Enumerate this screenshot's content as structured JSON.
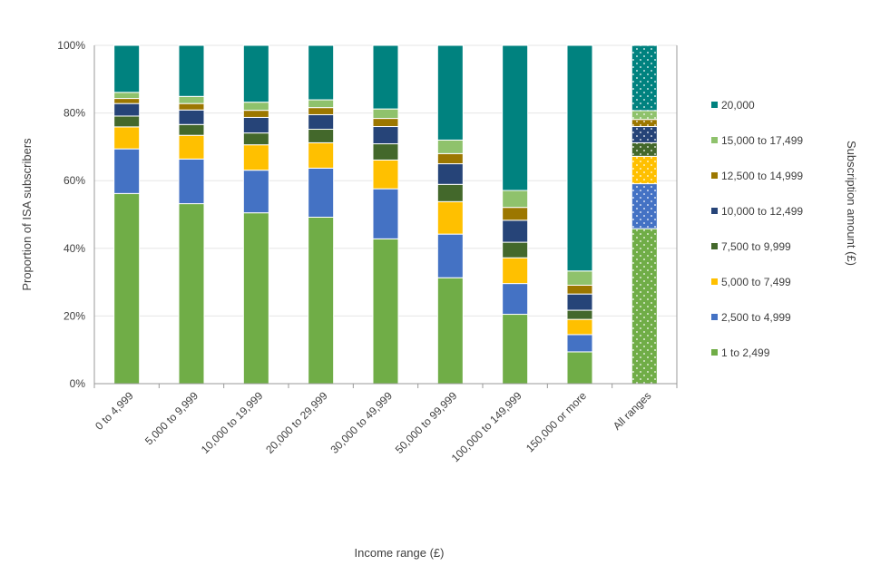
{
  "chart_data": {
    "type": "bar",
    "stacked": true,
    "xlabel": "Income range (£)",
    "ylabel": "Proportion of ISA subscribers",
    "legend_title": "Subscription amount (£)",
    "legend_position": "right",
    "ylim": [
      0,
      100
    ],
    "yticks": [
      0,
      20,
      40,
      60,
      80,
      100
    ],
    "ytick_labels": [
      "0%",
      "20%",
      "40%",
      "60%",
      "80%",
      "100%"
    ],
    "categories": [
      "0 to 4,999",
      "5,000 to 9,999",
      "10,000 to 19,999",
      "20,000 to 29,999",
      "30,000 to 49,999",
      "50,000 to 99,999",
      "100,000 to 149,999",
      "150,000 or more",
      "All ranges"
    ],
    "series": [
      {
        "name": "1 to 2,499",
        "color": "#70AD47",
        "values": [
          56.2,
          53.2,
          50.5,
          49.2,
          42.8,
          31.3,
          20.5,
          9.4,
          45.8
        ]
      },
      {
        "name": "2,500 to 4,999",
        "color": "#4472C4",
        "values": [
          13.2,
          13.2,
          12.6,
          14.5,
          14.8,
          12.9,
          9.1,
          5.1,
          13.3
        ]
      },
      {
        "name": "5,000 to 7,499",
        "color": "#FFC000",
        "values": [
          6.5,
          7.0,
          7.5,
          7.5,
          8.5,
          9.6,
          7.6,
          4.5,
          8.1
        ]
      },
      {
        "name": "7,500 to 9,999",
        "color": "#43682B",
        "values": [
          3.2,
          3.2,
          3.5,
          4.0,
          4.8,
          5.1,
          4.6,
          2.7,
          4.0
        ]
      },
      {
        "name": "10,000 to 12,499",
        "color": "#264478",
        "values": [
          3.7,
          4.3,
          4.6,
          4.3,
          5.1,
          6.1,
          6.5,
          4.8,
          4.8
        ]
      },
      {
        "name": "12,500 to 14,999",
        "color": "#9C7700",
        "values": [
          1.5,
          1.9,
          2.1,
          2.1,
          2.4,
          3.0,
          3.8,
          2.6,
          2.1
        ]
      },
      {
        "name": "15,000 to 17,499",
        "color": "#8FC26C",
        "values": [
          1.8,
          2.1,
          2.4,
          2.3,
          2.8,
          4.0,
          5.0,
          4.2,
          2.6
        ]
      },
      {
        "name": "20,000",
        "color": "#00827F",
        "values": [
          13.9,
          15.1,
          16.8,
          16.1,
          18.8,
          28.0,
          42.9,
          66.7,
          19.3
        ]
      }
    ],
    "patterned_categories": [
      "All ranges"
    ]
  }
}
